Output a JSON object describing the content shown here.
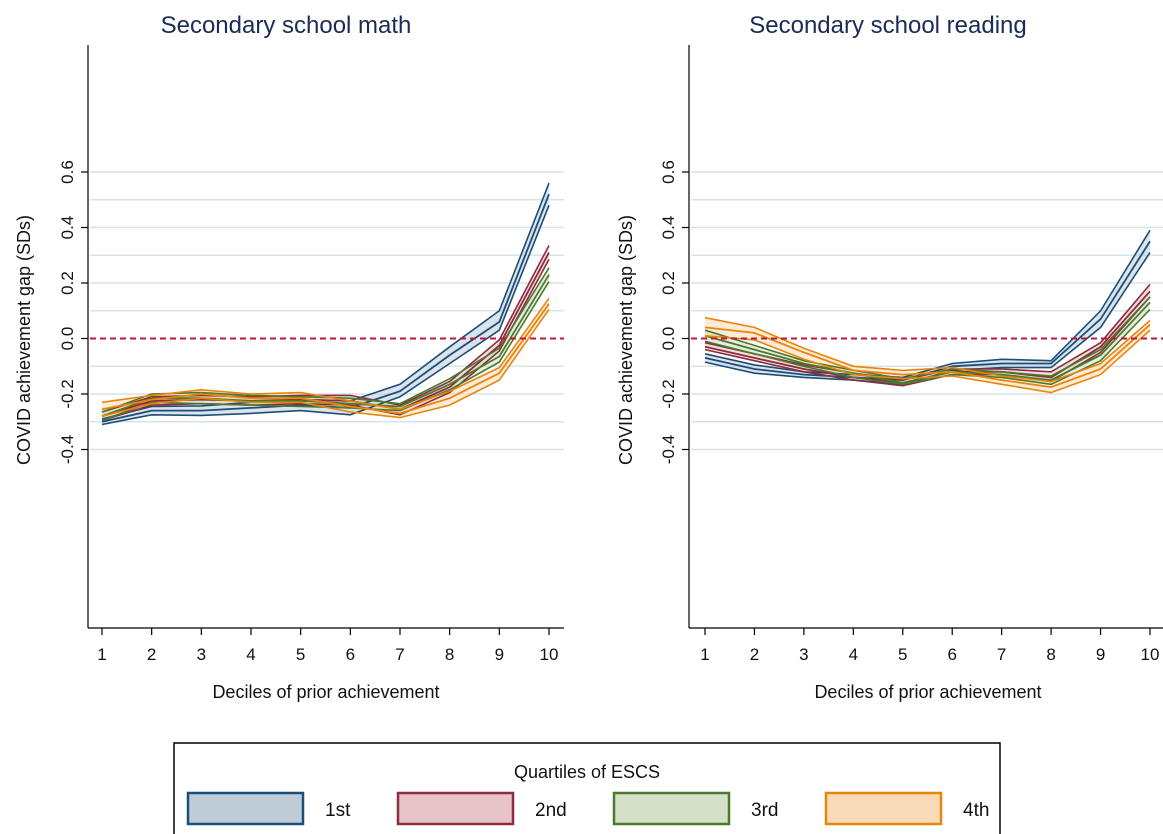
{
  "chart_data": [
    {
      "type": "line",
      "title": "Secondary school math",
      "xlabel": "Deciles of prior achievement",
      "ylabel": "COVID achievement gap (SDs)",
      "x": [
        1,
        2,
        3,
        4,
        5,
        6,
        7,
        8,
        9,
        10
      ],
      "xticks": [
        "1",
        "2",
        "3",
        "4",
        "5",
        "6",
        "7",
        "8",
        "9",
        "10"
      ],
      "yticks": [
        "-0.4",
        "-0.2",
        "0.0",
        "0.2",
        "0.4",
        "0.6"
      ],
      "ylim": [
        -0.42,
        0.63
      ],
      "reference_line": 0.0,
      "grid": true,
      "series": [
        {
          "name": "1st",
          "values": [
            -0.3,
            -0.26,
            -0.26,
            -0.25,
            -0.24,
            -0.25,
            -0.19,
            -0.06,
            0.06,
            0.52
          ],
          "lower": [
            -0.31,
            -0.275,
            -0.277,
            -0.27,
            -0.26,
            -0.275,
            -0.21,
            -0.09,
            0.03,
            0.48
          ],
          "upper": [
            -0.29,
            -0.245,
            -0.243,
            -0.23,
            -0.22,
            -0.225,
            -0.165,
            -0.03,
            0.1,
            0.56
          ]
        },
        {
          "name": "2nd",
          "values": [
            -0.28,
            -0.225,
            -0.22,
            -0.225,
            -0.22,
            -0.225,
            -0.255,
            -0.175,
            -0.025,
            0.31
          ],
          "lower": [
            -0.295,
            -0.24,
            -0.235,
            -0.24,
            -0.235,
            -0.24,
            -0.275,
            -0.195,
            -0.045,
            0.285
          ],
          "upper": [
            -0.265,
            -0.21,
            -0.205,
            -0.21,
            -0.205,
            -0.205,
            -0.24,
            -0.155,
            -0.005,
            0.335
          ]
        },
        {
          "name": "3rd",
          "values": [
            -0.28,
            -0.215,
            -0.215,
            -0.225,
            -0.225,
            -0.235,
            -0.245,
            -0.165,
            -0.065,
            0.23
          ],
          "lower": [
            -0.295,
            -0.23,
            -0.235,
            -0.24,
            -0.245,
            -0.25,
            -0.26,
            -0.185,
            -0.085,
            0.205
          ],
          "upper": [
            -0.265,
            -0.2,
            -0.195,
            -0.205,
            -0.21,
            -0.215,
            -0.235,
            -0.145,
            -0.035,
            0.255
          ]
        },
        {
          "name": "4th",
          "values": [
            -0.255,
            -0.22,
            -0.2,
            -0.215,
            -0.215,
            -0.245,
            -0.27,
            -0.215,
            -0.125,
            0.125
          ],
          "lower": [
            -0.28,
            -0.235,
            -0.215,
            -0.23,
            -0.23,
            -0.265,
            -0.285,
            -0.24,
            -0.15,
            0.105
          ],
          "upper": [
            -0.23,
            -0.205,
            -0.185,
            -0.2,
            -0.195,
            -0.225,
            -0.255,
            -0.19,
            -0.105,
            0.145
          ]
        }
      ]
    },
    {
      "type": "line",
      "title": "Secondary school reading",
      "xlabel": "Deciles of prior achievement",
      "ylabel": "COVID achievement gap (SDs)",
      "x": [
        1,
        2,
        3,
        4,
        5,
        6,
        7,
        8,
        9,
        10
      ],
      "xticks": [
        "1",
        "2",
        "3",
        "4",
        "5",
        "6",
        "7",
        "8",
        "9",
        "10"
      ],
      "yticks": [
        "-0.4",
        "-0.2",
        "0.0",
        "0.2",
        "0.4",
        "0.6"
      ],
      "ylim": [
        -0.42,
        0.63
      ],
      "reference_line": 0.0,
      "grid": true,
      "series": [
        {
          "name": "1st",
          "values": [
            -0.07,
            -0.11,
            -0.13,
            -0.14,
            -0.15,
            -0.1,
            -0.09,
            -0.09,
            0.07,
            0.35
          ],
          "lower": [
            -0.085,
            -0.125,
            -0.14,
            -0.15,
            -0.165,
            -0.115,
            -0.105,
            -0.105,
            0.04,
            0.31
          ],
          "upper": [
            -0.055,
            -0.095,
            -0.12,
            -0.13,
            -0.14,
            -0.09,
            -0.075,
            -0.08,
            0.1,
            0.39
          ]
        },
        {
          "name": "2nd",
          "values": [
            -0.03,
            -0.07,
            -0.11,
            -0.14,
            -0.16,
            -0.12,
            -0.12,
            -0.14,
            -0.03,
            0.17
          ],
          "lower": [
            -0.04,
            -0.08,
            -0.12,
            -0.15,
            -0.17,
            -0.13,
            -0.13,
            -0.155,
            -0.05,
            0.15
          ],
          "upper": [
            -0.015,
            -0.055,
            -0.095,
            -0.125,
            -0.15,
            -0.11,
            -0.11,
            -0.12,
            -0.015,
            0.195
          ]
        },
        {
          "name": "3rd",
          "values": [
            0.01,
            -0.04,
            -0.09,
            -0.125,
            -0.16,
            -0.12,
            -0.13,
            -0.15,
            -0.06,
            0.13
          ],
          "lower": [
            -0.01,
            -0.055,
            -0.1,
            -0.14,
            -0.165,
            -0.13,
            -0.14,
            -0.165,
            -0.08,
            0.105
          ],
          "upper": [
            0.03,
            -0.025,
            -0.08,
            -0.115,
            -0.145,
            -0.11,
            -0.12,
            -0.135,
            -0.04,
            0.15
          ]
        },
        {
          "name": "4th",
          "values": [
            0.04,
            0.02,
            -0.05,
            -0.115,
            -0.13,
            -0.12,
            -0.15,
            -0.175,
            -0.11,
            0.05
          ],
          "lower": [
            0.01,
            -0.005,
            -0.075,
            -0.13,
            -0.145,
            -0.135,
            -0.165,
            -0.195,
            -0.13,
            0.03
          ],
          "upper": [
            0.075,
            0.04,
            -0.035,
            -0.1,
            -0.115,
            -0.105,
            -0.135,
            -0.155,
            -0.09,
            0.065
          ]
        }
      ]
    }
  ],
  "legend": {
    "title": "Quartiles of ESCS",
    "entries": [
      {
        "label": "1st",
        "line": "#1b4f79",
        "fill": "#c0ccd8"
      },
      {
        "label": "2nd",
        "line": "#8e2c3d",
        "fill": "#e6c4c8"
      },
      {
        "label": "3rd",
        "line": "#4c7a2c",
        "fill": "#d4e0c8"
      },
      {
        "label": "4th",
        "line": "#e8850c",
        "fill": "#f8dbb6"
      }
    ]
  },
  "colors": {
    "reference_line": "#c0143c",
    "grid": "#d6e4e8",
    "axis": "#000000",
    "title": "#1a2b55"
  }
}
